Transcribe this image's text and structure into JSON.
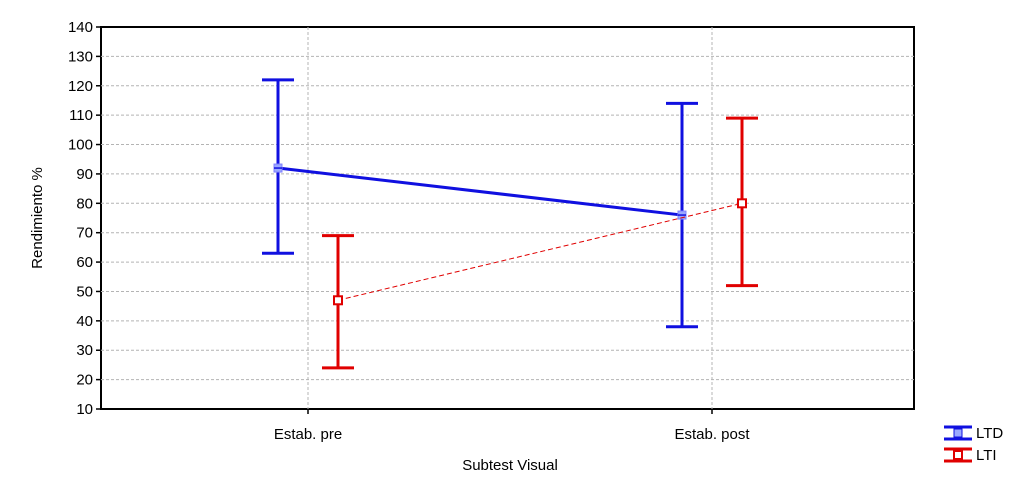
{
  "chart_data": {
    "type": "line",
    "title": "",
    "xlabel": "Subtest Visual",
    "ylabel": "Rendimiento %",
    "categories": [
      "Estab. pre",
      "Estab. post"
    ],
    "ylim": [
      10,
      140
    ],
    "yticks": [
      10,
      20,
      30,
      40,
      50,
      60,
      70,
      80,
      90,
      100,
      110,
      120,
      130,
      140
    ],
    "grid": true,
    "legend_position": "bottom-right",
    "series": [
      {
        "name": "LTD",
        "color": "#1010e0",
        "line_style": "solid",
        "marker": "cross-square",
        "values": [
          92,
          76
        ],
        "error_low": [
          63,
          38
        ],
        "error_high": [
          122,
          114
        ]
      },
      {
        "name": "LTI",
        "color": "#e00000",
        "line_style": "dashed",
        "marker": "square",
        "values": [
          47,
          80
        ],
        "error_low": [
          24,
          52
        ],
        "error_high": [
          69,
          109
        ]
      }
    ]
  }
}
